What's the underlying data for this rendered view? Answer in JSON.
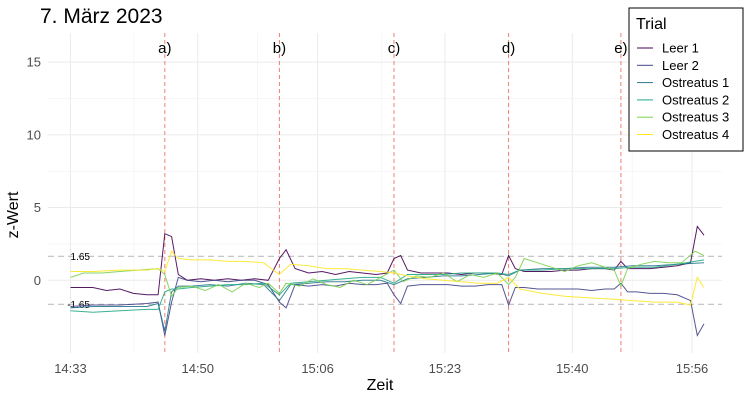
{
  "chart_data": {
    "type": "line",
    "title": "7. März 2023",
    "xlabel": "Zeit",
    "ylabel": "z-Wert",
    "xlim": [
      14.5,
      16.0
    ],
    "ylim": [
      -5,
      17
    ],
    "x_ticks": [
      {
        "value": 14.55,
        "label": "14:33"
      },
      {
        "value": 14.8333,
        "label": "14:50"
      },
      {
        "value": 15.1,
        "label": "15:06"
      },
      {
        "value": 15.3833,
        "label": "15:23"
      },
      {
        "value": 15.6667,
        "label": "15:40"
      },
      {
        "value": 15.9333,
        "label": "15:56"
      }
    ],
    "y_ticks": [
      0,
      5,
      10,
      15
    ],
    "grid": true,
    "legend": {
      "title": "Trial",
      "position": "top-right"
    },
    "thresholds": [
      {
        "value": 1.65,
        "label": "1.65"
      },
      {
        "value": -1.65,
        "label": "-1.65"
      }
    ],
    "events": [
      {
        "x": 14.76,
        "label": "a)"
      },
      {
        "x": 15.015,
        "label": "b)"
      },
      {
        "x": 15.27,
        "label": "c)"
      },
      {
        "x": 15.525,
        "label": "d)"
      },
      {
        "x": 15.775,
        "label": "e)"
      }
    ],
    "series": [
      {
        "name": "Leer 1",
        "color": "#440154",
        "x": [
          14.55,
          14.57,
          14.6,
          14.63,
          14.66,
          14.69,
          14.72,
          14.745,
          14.76,
          14.775,
          14.79,
          14.81,
          14.84,
          14.87,
          14.9,
          14.93,
          14.96,
          14.99,
          15.015,
          15.03,
          15.05,
          15.08,
          15.11,
          15.14,
          15.17,
          15.2,
          15.23,
          15.255,
          15.27,
          15.285,
          15.3,
          15.33,
          15.36,
          15.39,
          15.42,
          15.45,
          15.48,
          15.51,
          15.525,
          15.54,
          15.56,
          15.59,
          15.62,
          15.65,
          15.68,
          15.71,
          15.74,
          15.76,
          15.775,
          15.79,
          15.81,
          15.84,
          15.87,
          15.9,
          15.93,
          15.945,
          15.96
        ],
        "y": [
          -0.5,
          -0.5,
          -0.5,
          -0.7,
          -0.6,
          -0.9,
          -1.0,
          -1.0,
          3.2,
          3.0,
          0.4,
          0.0,
          0.1,
          0.0,
          0.1,
          0.0,
          0.1,
          0.0,
          1.5,
          2.1,
          0.8,
          0.5,
          0.6,
          0.4,
          0.6,
          0.5,
          0.4,
          0.5,
          1.5,
          1.7,
          0.7,
          0.5,
          0.5,
          0.5,
          0.4,
          0.5,
          0.5,
          0.4,
          1.7,
          0.8,
          0.6,
          0.6,
          0.6,
          0.7,
          0.7,
          0.8,
          0.8,
          0.7,
          1.3,
          0.8,
          0.8,
          0.8,
          0.9,
          1.0,
          1.2,
          3.7,
          3.1
        ]
      },
      {
        "name": "Leer 2",
        "color": "#414487",
        "x": [
          14.55,
          14.6,
          14.66,
          14.72,
          14.745,
          14.76,
          14.775,
          14.79,
          14.81,
          14.84,
          14.87,
          14.9,
          14.93,
          14.96,
          14.99,
          15.015,
          15.03,
          15.05,
          15.08,
          15.11,
          15.14,
          15.17,
          15.2,
          15.23,
          15.255,
          15.27,
          15.285,
          15.3,
          15.33,
          15.36,
          15.39,
          15.42,
          15.45,
          15.48,
          15.51,
          15.525,
          15.54,
          15.56,
          15.59,
          15.62,
          15.65,
          15.68,
          15.71,
          15.74,
          15.76,
          15.775,
          15.79,
          15.81,
          15.84,
          15.87,
          15.9,
          15.93,
          15.945,
          15.96
        ],
        "y": [
          -1.8,
          -1.7,
          -1.7,
          -1.6,
          -1.5,
          -3.8,
          -1.5,
          0.2,
          0.0,
          -0.1,
          0.0,
          -0.1,
          0.0,
          0.0,
          -0.3,
          -1.5,
          -1.9,
          -0.3,
          -0.4,
          -0.3,
          -0.4,
          -0.2,
          -0.3,
          -0.3,
          -0.2,
          -1.0,
          -1.6,
          -0.4,
          -0.3,
          -0.3,
          -0.3,
          -0.4,
          -0.4,
          -0.3,
          -0.3,
          -1.7,
          -0.5,
          -0.5,
          -0.6,
          -0.6,
          -0.6,
          -0.6,
          -0.7,
          -0.6,
          -0.6,
          -0.2,
          -0.8,
          -0.8,
          -0.9,
          -0.9,
          -1.0,
          -1.4,
          -3.8,
          -3.0
        ]
      },
      {
        "name": "Ostreatus 1",
        "color": "#2a788e",
        "x": [
          14.55,
          14.6,
          14.66,
          14.72,
          14.745,
          14.76,
          14.775,
          14.79,
          14.82,
          14.86,
          14.9,
          14.94,
          14.98,
          15.015,
          15.04,
          15.08,
          15.12,
          15.16,
          15.2,
          15.24,
          15.27,
          15.3,
          15.34,
          15.38,
          15.42,
          15.46,
          15.5,
          15.525,
          15.55,
          15.6,
          15.65,
          15.7,
          15.76,
          15.8,
          15.85,
          15.9,
          15.96
        ],
        "y": [
          -1.9,
          -1.8,
          -1.8,
          -1.8,
          -1.6,
          -3.5,
          -0.8,
          -0.4,
          -0.4,
          -0.3,
          -0.4,
          -0.2,
          -0.3,
          -1.4,
          -0.3,
          -0.2,
          -0.1,
          -0.1,
          0.0,
          0.0,
          -0.3,
          0.1,
          0.2,
          0.3,
          0.3,
          0.4,
          0.5,
          0.3,
          0.7,
          0.8,
          0.8,
          0.9,
          0.9,
          1.0,
          1.0,
          1.1,
          1.2
        ]
      },
      {
        "name": "Ostreatus 2",
        "color": "#22a884",
        "x": [
          14.55,
          14.6,
          14.66,
          14.72,
          14.745,
          14.76,
          14.775,
          14.79,
          14.82,
          14.86,
          14.9,
          14.94,
          14.98,
          15.015,
          15.04,
          15.08,
          15.12,
          15.16,
          15.2,
          15.24,
          15.27,
          15.3,
          15.34,
          15.38,
          15.42,
          15.46,
          15.5,
          15.525,
          15.55,
          15.6,
          15.65,
          15.7,
          15.76,
          15.8,
          15.85,
          15.9,
          15.96
        ],
        "y": [
          -2.1,
          -2.2,
          -2.1,
          -2.0,
          -2.0,
          -0.8,
          -0.6,
          -0.6,
          -0.5,
          -0.4,
          -0.3,
          -0.3,
          -0.2,
          -1.0,
          -0.2,
          -0.1,
          0.0,
          0.1,
          0.2,
          0.2,
          -0.2,
          0.4,
          0.4,
          0.4,
          0.5,
          0.5,
          0.5,
          0.4,
          0.7,
          0.7,
          0.8,
          0.8,
          0.8,
          0.9,
          0.9,
          1.1,
          1.4
        ]
      },
      {
        "name": "Ostreatus 3",
        "color": "#7ad151",
        "x": [
          14.55,
          14.58,
          14.62,
          14.66,
          14.7,
          14.745,
          14.76,
          14.775,
          14.79,
          14.82,
          14.85,
          14.88,
          14.91,
          14.94,
          14.97,
          14.99,
          15.015,
          15.03,
          15.06,
          15.09,
          15.12,
          15.15,
          15.18,
          15.21,
          15.24,
          15.27,
          15.29,
          15.32,
          15.35,
          15.38,
          15.41,
          15.44,
          15.47,
          15.5,
          15.525,
          15.54,
          15.56,
          15.59,
          15.62,
          15.65,
          15.68,
          15.71,
          15.74,
          15.76,
          15.775,
          15.79,
          15.82,
          15.85,
          15.88,
          15.91,
          15.94,
          15.96
        ],
        "y": [
          0.2,
          0.5,
          0.5,
          0.6,
          0.7,
          0.8,
          0.4,
          -1.1,
          -0.5,
          -0.4,
          -0.7,
          -0.3,
          -0.8,
          -0.2,
          -0.5,
          -0.2,
          -0.9,
          -0.2,
          -0.4,
          0.1,
          -0.3,
          -0.5,
          0.0,
          -0.3,
          0.2,
          0.7,
          -0.1,
          0.3,
          0.2,
          0.5,
          -0.1,
          0.4,
          0.2,
          0.5,
          -0.3,
          0.2,
          1.5,
          1.2,
          0.9,
          0.6,
          1.0,
          1.2,
          0.9,
          0.7,
          -0.4,
          0.8,
          1.1,
          1.3,
          1.2,
          1.2,
          2.0,
          1.7
        ]
      },
      {
        "name": "Ostreatus 4",
        "color": "#fde725",
        "x": [
          14.55,
          14.6,
          14.66,
          14.72,
          14.745,
          14.76,
          14.775,
          14.79,
          14.82,
          14.86,
          14.9,
          14.94,
          14.98,
          15.015,
          15.04,
          15.08,
          15.12,
          15.16,
          15.2,
          15.24,
          15.27,
          15.3,
          15.34,
          15.38,
          15.42,
          15.46,
          15.5,
          15.525,
          15.55,
          15.6,
          15.65,
          15.7,
          15.76,
          15.8,
          15.85,
          15.9,
          15.93,
          15.945,
          15.96
        ],
        "y": [
          0.6,
          0.6,
          0.7,
          0.7,
          0.8,
          0.6,
          2.0,
          1.5,
          1.4,
          1.4,
          1.3,
          1.3,
          1.2,
          0.4,
          1.1,
          1.0,
          0.8,
          0.8,
          0.7,
          0.6,
          0.5,
          0.3,
          0.1,
          0.0,
          -0.1,
          -0.2,
          -0.2,
          0.2,
          -0.6,
          -0.9,
          -1.1,
          -1.2,
          -1.3,
          -1.4,
          -1.5,
          -1.5,
          -1.7,
          0.2,
          -0.5
        ]
      }
    ]
  }
}
